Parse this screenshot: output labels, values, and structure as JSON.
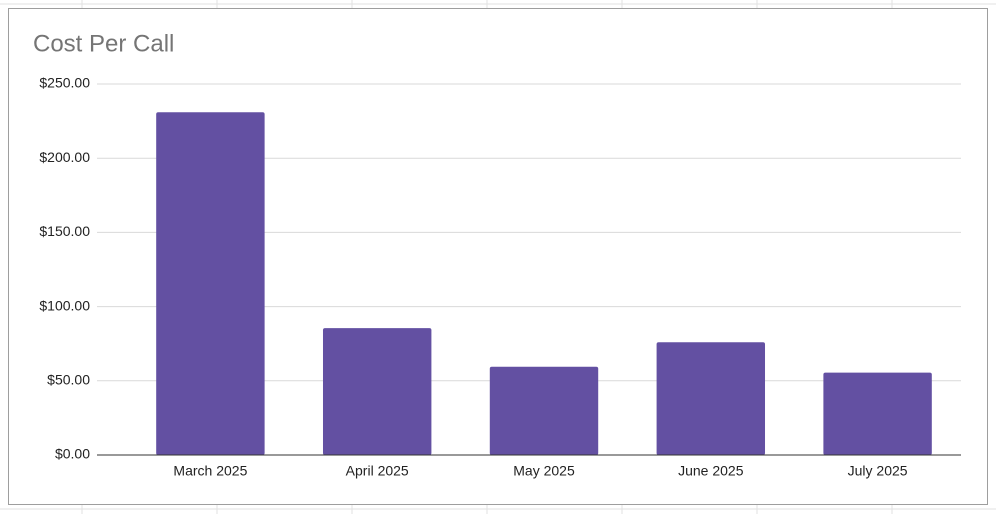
{
  "chart_data": {
    "type": "bar",
    "title": "Cost Per Call",
    "categories": [
      "March 2025",
      "April 2025",
      "May 2025",
      "June 2025",
      "July 2025"
    ],
    "values": [
      231,
      85.5,
      59.5,
      76,
      55.5
    ],
    "color": "#6350a2",
    "ylim": [
      0,
      250
    ],
    "yticks": [
      {
        "value": 0,
        "label": "$0.00"
      },
      {
        "value": 50,
        "label": "$50.00"
      },
      {
        "value": 100,
        "label": "$100.00"
      },
      {
        "value": 150,
        "label": "$150.00"
      },
      {
        "value": 200,
        "label": "$200.00"
      },
      {
        "value": 250,
        "label": "$250.00"
      }
    ],
    "grid": true
  }
}
